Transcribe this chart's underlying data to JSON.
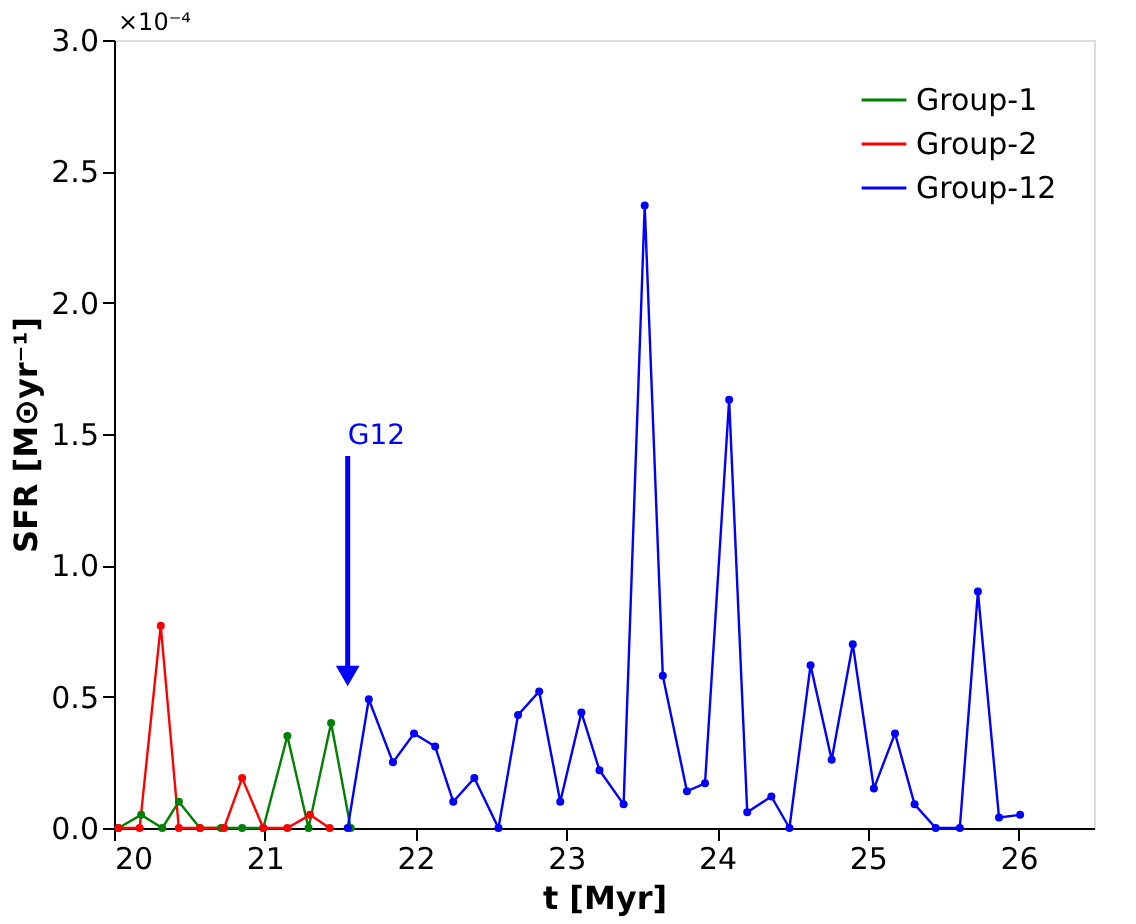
{
  "chart_data": {
    "type": "line",
    "xlabel": "t [Myr]",
    "ylabel": "SFR [M⊙yr⁻¹]",
    "xlim": [
      20,
      26.5
    ],
    "xticks": [
      20,
      21,
      22,
      23,
      24,
      25,
      26
    ],
    "ylim": [
      0,
      3.0
    ],
    "yticks": [
      {
        "value": 0,
        "label": "0.0"
      },
      0.5,
      {
        "value": 1,
        "label": "1.0"
      },
      1.5,
      {
        "value": 2,
        "label": "2.0"
      },
      2.5,
      {
        "value": 3,
        "label": "3.0"
      }
    ],
    "grid": false,
    "legend": "top right",
    "marker": "circle",
    "line_style": "solid",
    "annotations": [
      "×10⁻⁴",
      "G12"
    ],
    "series": [
      {
        "name": "Group-1",
        "color": "#008000",
        "x": [
          20.03,
          20.18,
          20.32,
          20.43,
          20.57,
          20.71,
          20.85,
          20.99,
          21.15,
          21.29,
          21.44,
          21.57
        ],
        "values": [
          0,
          0.05,
          0,
          0.1,
          0,
          0,
          0,
          0,
          0.35,
          0,
          0.4,
          0
        ]
      },
      {
        "name": "Group-2",
        "color": "#ff0000",
        "x": [
          20.03,
          20.17,
          20.31,
          20.43,
          20.57,
          20.73,
          20.85,
          20.99,
          21.15,
          21.3,
          21.43
        ],
        "values": [
          0,
          0,
          0.77,
          0,
          0,
          0,
          0.19,
          0,
          0,
          0.05,
          0
        ]
      },
      {
        "name": "Group-12",
        "color": "#0000ff",
        "x": [
          21.55,
          21.69,
          21.85,
          21.99,
          22.13,
          22.25,
          22.39,
          22.55,
          22.68,
          22.82,
          22.96,
          23.1,
          23.22,
          23.38,
          23.52,
          23.64,
          23.8,
          23.92,
          24.08,
          24.2,
          24.36,
          24.48,
          24.62,
          24.76,
          24.9,
          25.04,
          25.18,
          25.31,
          25.45,
          25.61,
          25.73,
          25.87,
          26.01
        ],
        "values": [
          0,
          0.49,
          0.25,
          0.36,
          0.31,
          0.1,
          0.19,
          0,
          0.43,
          0.52,
          0.1,
          0.44,
          0.22,
          0.09,
          2.37,
          0.58,
          0.14,
          0.17,
          1.63,
          0.06,
          0.12,
          0,
          0.62,
          0.26,
          0.7,
          0.15,
          0.36,
          0.09,
          0,
          0,
          0.9,
          0.04,
          0.05
        ]
      }
    ]
  }
}
